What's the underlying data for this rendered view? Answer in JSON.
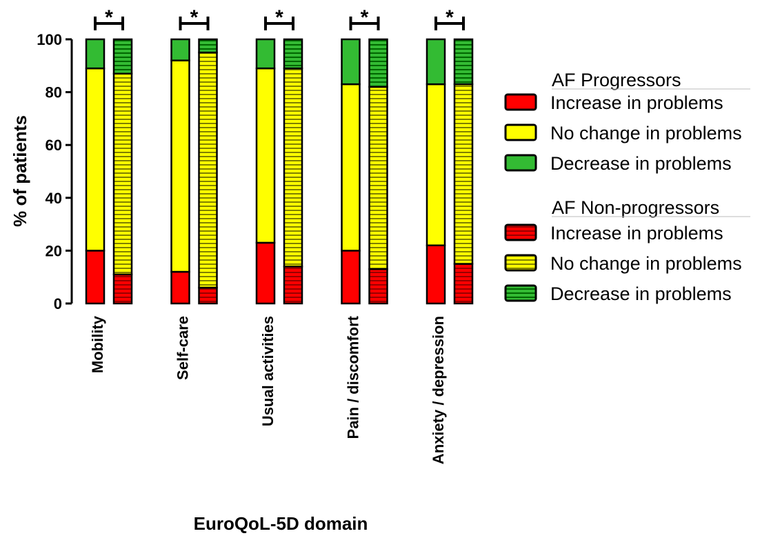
{
  "chart_data": {
    "type": "bar",
    "stacked": true,
    "xlabel": "EuroQoL-5D domain",
    "ylabel": "% of patients",
    "ylim": [
      0,
      100
    ],
    "yticks": [
      0,
      20,
      40,
      60,
      80,
      100
    ],
    "grid": false,
    "legend_position": "right",
    "significance_marker": "*",
    "categories": [
      "Mobility",
      "Self-care",
      "Usual activities",
      "Pain / discomfort",
      "Anxiety / depression"
    ],
    "groups": [
      {
        "name": "AF Progressors",
        "pattern": "solid",
        "series": [
          {
            "name": "Increase in problems",
            "values": [
              20,
              12,
              23,
              20,
              22
            ]
          },
          {
            "name": "No change in problems",
            "values": [
              69,
              80,
              66,
              63,
              61
            ]
          },
          {
            "name": "Decrease in problems",
            "values": [
              11,
              8,
              11,
              17,
              17
            ]
          }
        ]
      },
      {
        "name": "AF Non-progressors",
        "pattern": "horizontal-stripes",
        "series": [
          {
            "name": "Increase in problems",
            "values": [
              11,
              6,
              14,
              13,
              15
            ]
          },
          {
            "name": "No change in problems",
            "values": [
              76,
              89,
              75,
              69,
              68
            ]
          },
          {
            "name": "Decrease in problems",
            "values": [
              13,
              5,
              11,
              18,
              17
            ]
          }
        ]
      }
    ],
    "colors": {
      "increase": "#ff0000",
      "no_change": "#ffff00",
      "decrease": "#33bb33",
      "increase_stripe": "#990000",
      "no_change_stripe": "#808000",
      "decrease_stripe": "#006600"
    }
  }
}
